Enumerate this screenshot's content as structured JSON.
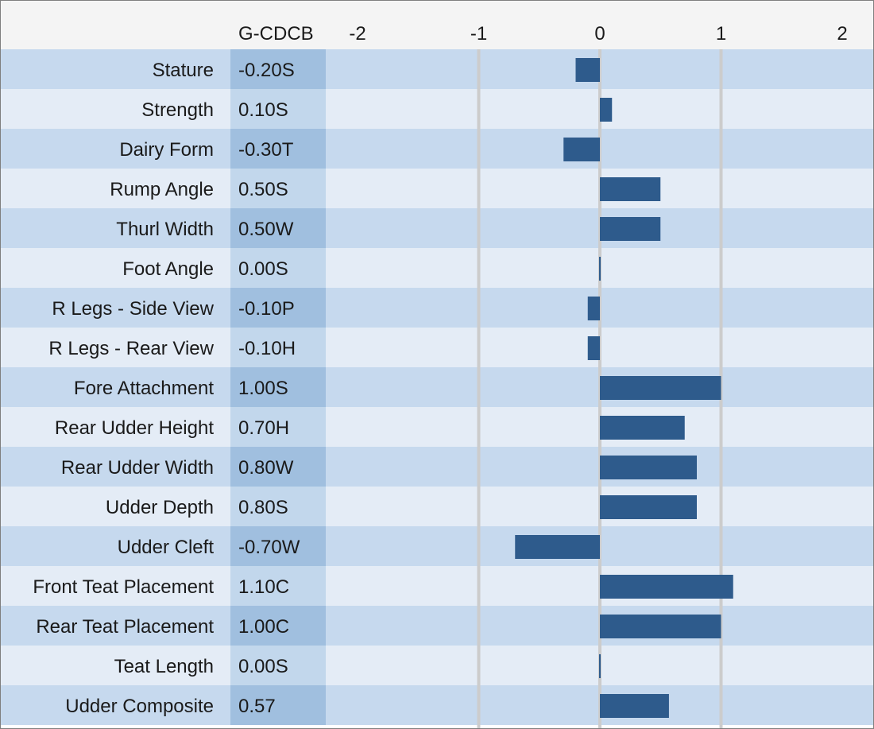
{
  "header": {
    "column_label": "G-CDCB"
  },
  "chart_data": {
    "type": "bar",
    "orientation": "horizontal",
    "xlim": [
      -2.25,
      2.25
    ],
    "x_ticks": [
      -2,
      -1,
      0,
      1,
      2
    ],
    "x_tick_labels": [
      "-2",
      "-1",
      "0",
      "1",
      "2"
    ],
    "grid": "vertical",
    "colors": {
      "bar": "#2e5b8c",
      "row_dark": "#c6d9ee",
      "row_light": "#e4ecf6",
      "label_col_dark": "#a0bfdf",
      "label_col_light": "#c2d7ec",
      "header_bg": "#f4f4f4",
      "grid": "#cccccc"
    },
    "categories": [
      "Stature",
      "Strength",
      "Dairy Form",
      "Rump Angle",
      "Thurl Width",
      "Foot Angle",
      "R Legs - Side View",
      "R Legs - Rear View",
      "Fore Attachment",
      "Rear Udder Height",
      "Rear Udder Width",
      "Udder Depth",
      "Udder Cleft",
      "Front Teat Placement",
      "Rear Teat Placement",
      "Teat Length",
      "Udder Composite"
    ],
    "value_labels": [
      "-0.20S",
      "0.10S",
      "-0.30T",
      "0.50S",
      "0.50W",
      "0.00S",
      "-0.10P",
      "-0.10H",
      "1.00S",
      "0.70H",
      "0.80W",
      "0.80S",
      "-0.70W",
      "1.10C",
      "1.00C",
      "0.00S",
      "0.57"
    ],
    "values": [
      -0.2,
      0.1,
      -0.3,
      0.5,
      0.5,
      0.0,
      -0.1,
      -0.1,
      1.0,
      0.7,
      0.8,
      0.8,
      -0.7,
      1.1,
      1.0,
      0.0,
      0.57
    ]
  }
}
